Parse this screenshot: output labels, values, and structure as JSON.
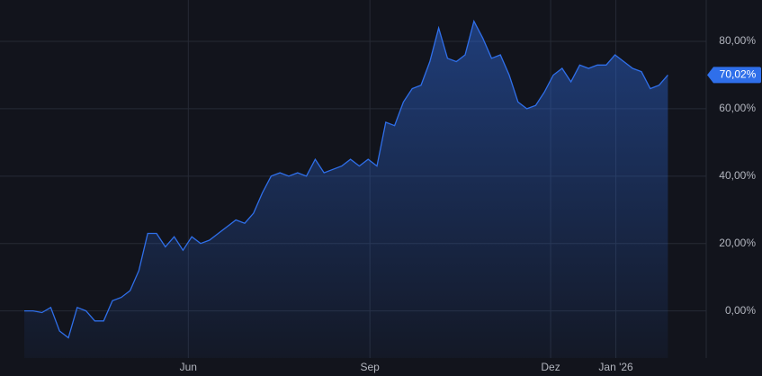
{
  "chart_data": {
    "type": "area",
    "values": [
      0,
      0,
      -0.5,
      1,
      -6,
      -8,
      1,
      0,
      -3,
      -3,
      3,
      4,
      6,
      12,
      23,
      23,
      19,
      22,
      18,
      22,
      20,
      21,
      23,
      25,
      27,
      26,
      29,
      35,
      40,
      41,
      40,
      41,
      40,
      45,
      41,
      42,
      43,
      45,
      43,
      45,
      43,
      56,
      55,
      62,
      66,
      67,
      74,
      84,
      75,
      74,
      76,
      86,
      81,
      75,
      76,
      70,
      62,
      60,
      61,
      65,
      70,
      72,
      68,
      73,
      72,
      73,
      73,
      76,
      74,
      72,
      71,
      66,
      67,
      70.02
    ],
    "color": "#2f6fea",
    "end_label": "70,02%",
    "xlim": [
      -2.76,
      77.35
    ],
    "xticks": [
      {
        "value": 18.6,
        "label": "Jun"
      },
      {
        "value": 39.2,
        "label": "Sep"
      },
      {
        "value": 59.7,
        "label": "Dez"
      },
      {
        "value": 67.1,
        "label": "Jan '26"
      }
    ],
    "ylim": [
      -14,
      92.3
    ],
    "yticks": [
      {
        "value": 0,
        "label": "0,00%"
      },
      {
        "value": 20,
        "label": "20,00%"
      },
      {
        "value": 40,
        "label": "40,00%"
      },
      {
        "value": 60,
        "label": "60,00%"
      },
      {
        "value": 80,
        "label": "80,00%"
      }
    ],
    "grid": true
  }
}
